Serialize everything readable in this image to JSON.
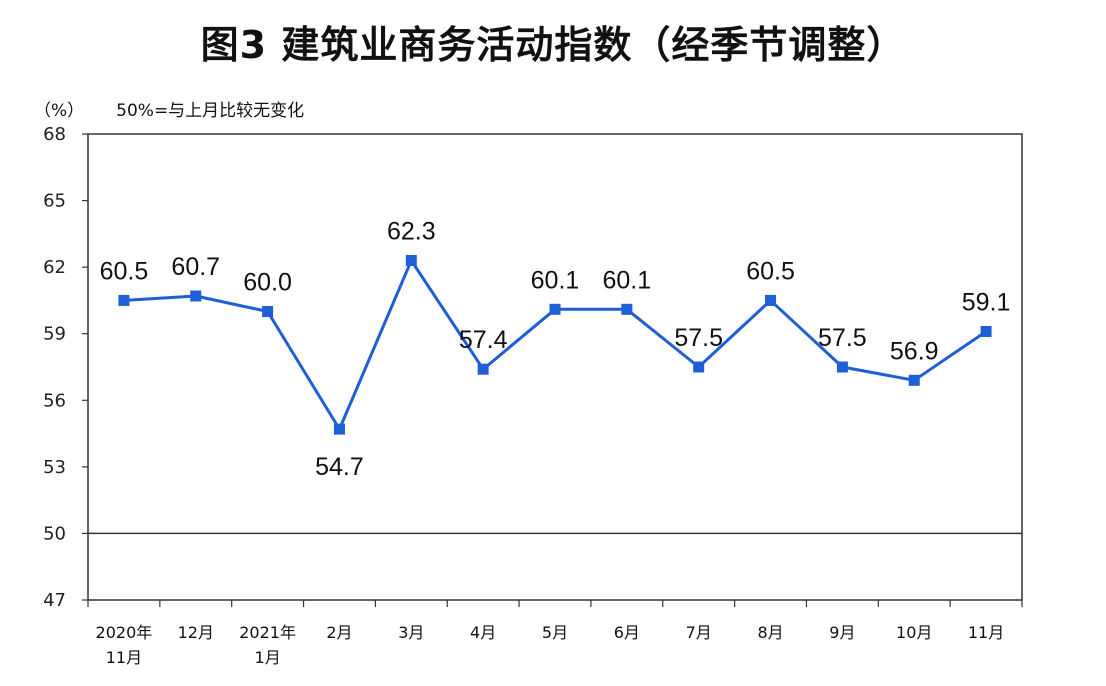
{
  "title": "图3  建筑业商务活动指数（经季节调整）",
  "unit_label": "（%）",
  "note": "50%=与上月比较无变化",
  "chart_data": {
    "type": "line",
    "title": "图3  建筑业商务活动指数（经季节调整）",
    "ylabel": "（%）",
    "ylim": [
      47,
      68
    ],
    "yticks": [
      47,
      50,
      53,
      56,
      59,
      62,
      65,
      68
    ],
    "reference_line": 50,
    "grid": false,
    "categories": [
      [
        "2020年",
        "11月"
      ],
      [
        "12月"
      ],
      [
        "2021年",
        "1月"
      ],
      [
        "2月"
      ],
      [
        "3月"
      ],
      [
        "4月"
      ],
      [
        "5月"
      ],
      [
        "6月"
      ],
      [
        "7月"
      ],
      [
        "8月"
      ],
      [
        "9月"
      ],
      [
        "10月"
      ],
      [
        "11月"
      ]
    ],
    "values": [
      60.5,
      60.7,
      60.0,
      54.7,
      62.3,
      57.4,
      60.1,
      60.1,
      57.5,
      60.5,
      57.5,
      56.9,
      59.1
    ],
    "value_labels": [
      "60.5",
      "60.7",
      "60.0",
      "54.7",
      "62.3",
      "57.4",
      "60.1",
      "60.1",
      "57.5",
      "60.5",
      "57.5",
      "56.9",
      "59.1"
    ],
    "colors": {
      "line": "#1f5fd6",
      "marker": "#1f5fd6"
    }
  }
}
